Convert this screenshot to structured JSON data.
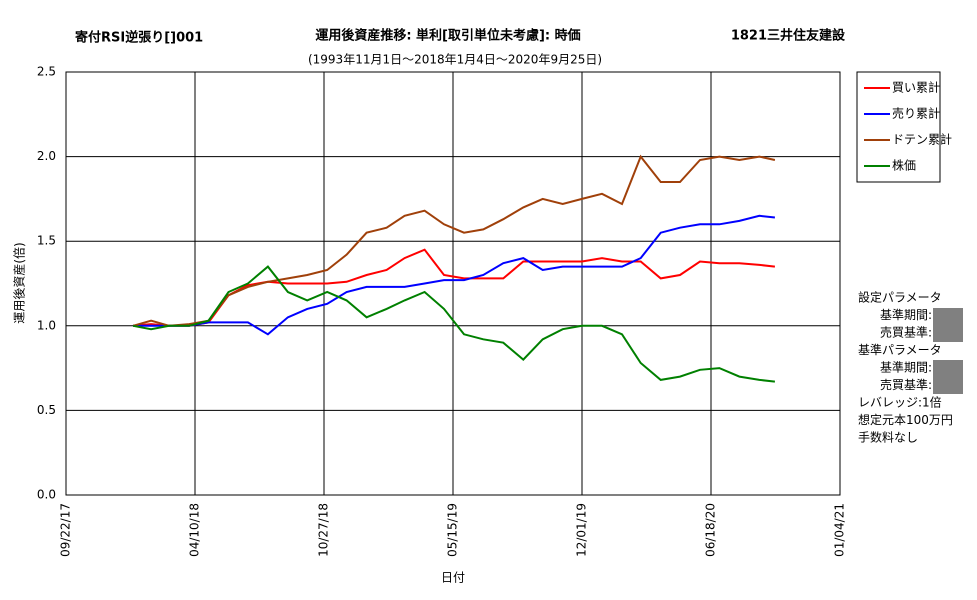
{
  "chart_data": {
    "type": "line",
    "header_left": "寄付RSI逆張り[]001",
    "title": "運用後資産推移: 単利[取引単位未考慮]: 時価",
    "header_right": "1821三井住友建設",
    "subtitle": "(1993年11月1日～2018年1月4日～2020年9月25日)",
    "y_label": "運用後資産(倍)",
    "x_label": "日付",
    "xlim": [
      "2017-09-22",
      "2021-01-04"
    ],
    "xticks": [
      {
        "value": "2017-09-22",
        "label": "09/22/17"
      },
      {
        "value": "2018-04-10",
        "label": "04/10/18"
      },
      {
        "value": "2018-10-27",
        "label": "10/27/18"
      },
      {
        "value": "2019-05-15",
        "label": "05/15/19"
      },
      {
        "value": "2019-12-01",
        "label": "12/01/19"
      },
      {
        "value": "2020-06-18",
        "label": "06/18/20"
      },
      {
        "value": "2021-01-04",
        "label": "01/04/21"
      }
    ],
    "ylim": [
      0,
      2.5
    ],
    "yticks": [
      {
        "value": 0,
        "label": "0.0"
      },
      0.5,
      {
        "value": 1,
        "label": "1.0"
      },
      1.5,
      {
        "value": 2,
        "label": "2.0"
      },
      2.5
    ],
    "grid": true,
    "legend": "right",
    "x": [
      "2018-01-04",
      "2018-02-01",
      "2018-03-01",
      "2018-04-01",
      "2018-05-01",
      "2018-06-01",
      "2018-07-01",
      "2018-08-01",
      "2018-09-01",
      "2018-10-01",
      "2018-11-01",
      "2018-12-01",
      "2019-01-01",
      "2019-02-01",
      "2019-03-01",
      "2019-04-01",
      "2019-05-01",
      "2019-06-01",
      "2019-07-01",
      "2019-08-01",
      "2019-09-01",
      "2019-10-01",
      "2019-11-01",
      "2019-12-01",
      "2020-01-01",
      "2020-02-01",
      "2020-03-01",
      "2020-04-01",
      "2020-05-01",
      "2020-06-01",
      "2020-07-01",
      "2020-08-01",
      "2020-09-01",
      "2020-09-25"
    ],
    "series": [
      {
        "name": "買い累計",
        "color": "#ff0000",
        "values": [
          1.0,
          1.01,
          1.0,
          1.0,
          1.02,
          1.18,
          1.24,
          1.26,
          1.25,
          1.25,
          1.25,
          1.26,
          1.3,
          1.33,
          1.4,
          1.45,
          1.3,
          1.28,
          1.28,
          1.28,
          1.38,
          1.38,
          1.38,
          1.38,
          1.4,
          1.38,
          1.38,
          1.28,
          1.3,
          1.38,
          1.37,
          1.37,
          1.36,
          1.35
        ]
      },
      {
        "name": "売り累計",
        "color": "#0000ff",
        "values": [
          1.0,
          1.0,
          1.0,
          1.0,
          1.02,
          1.02,
          1.02,
          0.95,
          1.05,
          1.1,
          1.13,
          1.2,
          1.23,
          1.23,
          1.23,
          1.25,
          1.27,
          1.27,
          1.3,
          1.37,
          1.4,
          1.33,
          1.35,
          1.35,
          1.35,
          1.35,
          1.4,
          1.55,
          1.58,
          1.6,
          1.6,
          1.62,
          1.65,
          1.64
        ]
      },
      {
        "name": "ドテン累計",
        "color": "#a0400a",
        "values": [
          1.0,
          1.03,
          1.0,
          1.01,
          1.03,
          1.18,
          1.23,
          1.26,
          1.28,
          1.3,
          1.33,
          1.42,
          1.55,
          1.58,
          1.65,
          1.68,
          1.6,
          1.55,
          1.57,
          1.63,
          1.7,
          1.75,
          1.72,
          1.75,
          1.78,
          1.72,
          2.0,
          1.85,
          1.85,
          1.98,
          2.0,
          1.98,
          2.0,
          1.98
        ]
      },
      {
        "name": "株価",
        "color": "#008000",
        "values": [
          1.0,
          0.98,
          1.0,
          1.0,
          1.03,
          1.2,
          1.25,
          1.35,
          1.2,
          1.15,
          1.2,
          1.15,
          1.05,
          1.1,
          1.15,
          1.2,
          1.1,
          0.95,
          0.92,
          0.9,
          0.8,
          0.92,
          0.98,
          1.0,
          1.0,
          0.95,
          0.78,
          0.68,
          0.7,
          0.74,
          0.75,
          0.7,
          0.68,
          0.67
        ]
      }
    ],
    "parameters": [
      "設定パラメータ",
      "基準期間:",
      "売買基準:",
      "基準パラメータ",
      "基準期間:",
      "売買基準:",
      "レバレッジ:1倍",
      "想定元本100万円",
      "手数料なし"
    ]
  }
}
